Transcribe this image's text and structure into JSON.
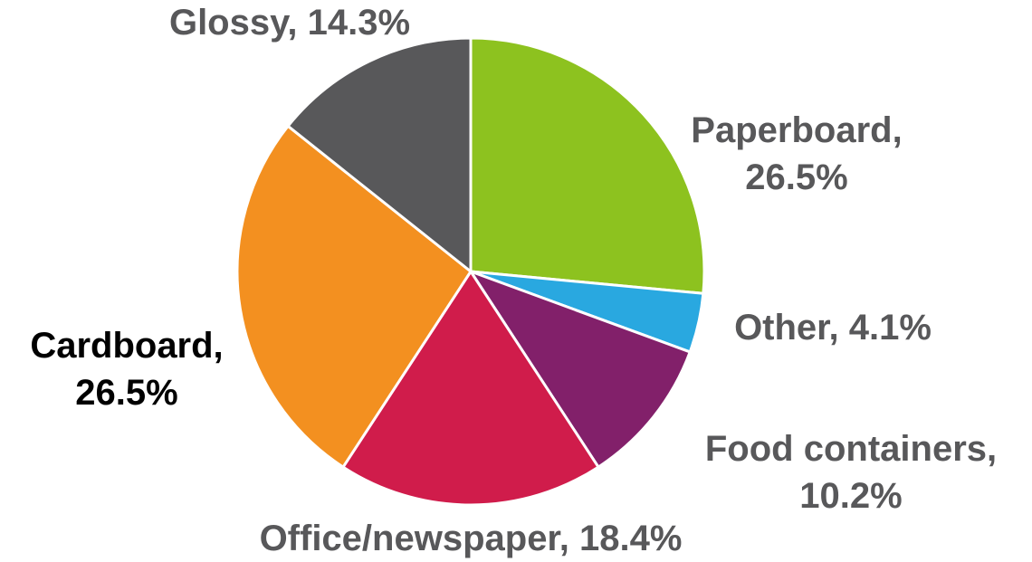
{
  "chart_data": {
    "type": "pie",
    "values": [
      26.5,
      4.1,
      10.2,
      18.4,
      26.5,
      14.3
    ],
    "value_labels": [
      "Paperboard, 26.5%",
      "Other, 4.1%",
      "Food containers, 10.2%",
      "Office/newspaper, 18.4%",
      "Cardboard, 26.5%",
      "Glossy, 14.3%"
    ],
    "colors": [
      "#8dc21f",
      "#29a8e0",
      "#82206a",
      "#d01c4b",
      "#f39020",
      "#58585a"
    ],
    "label_colors": [
      "#58585a",
      "#58585a",
      "#58585a",
      "#58585a",
      "#000000",
      "#58585a"
    ]
  }
}
